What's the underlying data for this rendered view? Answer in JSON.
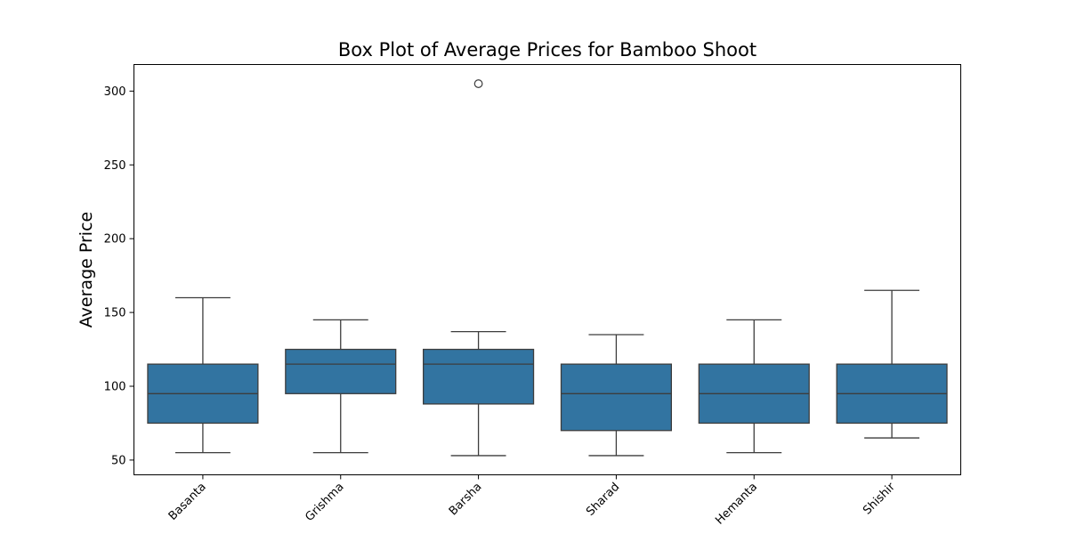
{
  "chart_data": {
    "type": "box",
    "title": "Box Plot of Average Prices for Bamboo Shoot",
    "xlabel": "",
    "ylabel": "Average Price",
    "categories": [
      "Basanta",
      "Grishma",
      "Barsha",
      "Sharad",
      "Hemanta",
      "Shishir"
    ],
    "boxes": [
      {
        "category": "Basanta",
        "whisker_low": 55,
        "q1": 75,
        "median": 95,
        "q3": 115,
        "whisker_high": 160,
        "outliers": []
      },
      {
        "category": "Grishma",
        "whisker_low": 55,
        "q1": 95,
        "median": 115,
        "q3": 125,
        "whisker_high": 145,
        "outliers": []
      },
      {
        "category": "Barsha",
        "whisker_low": 53,
        "q1": 88,
        "median": 115,
        "q3": 125,
        "whisker_high": 137,
        "outliers": [
          305
        ]
      },
      {
        "category": "Sharad",
        "whisker_low": 53,
        "q1": 70,
        "median": 95,
        "q3": 115,
        "whisker_high": 135,
        "outliers": []
      },
      {
        "category": "Hemanta",
        "whisker_low": 55,
        "q1": 75,
        "median": 95,
        "q3": 115,
        "whisker_high": 145,
        "outliers": []
      },
      {
        "category": "Shishir",
        "whisker_low": 65,
        "q1": 75,
        "median": 95,
        "q3": 115,
        "whisker_high": 165,
        "outliers": []
      }
    ],
    "yticks": [
      50,
      100,
      150,
      200,
      250,
      300
    ],
    "ylim": [
      40,
      318
    ],
    "box_color": "#3274a1",
    "line_color": "#3d3d3d",
    "grid": false,
    "legend": "none"
  }
}
